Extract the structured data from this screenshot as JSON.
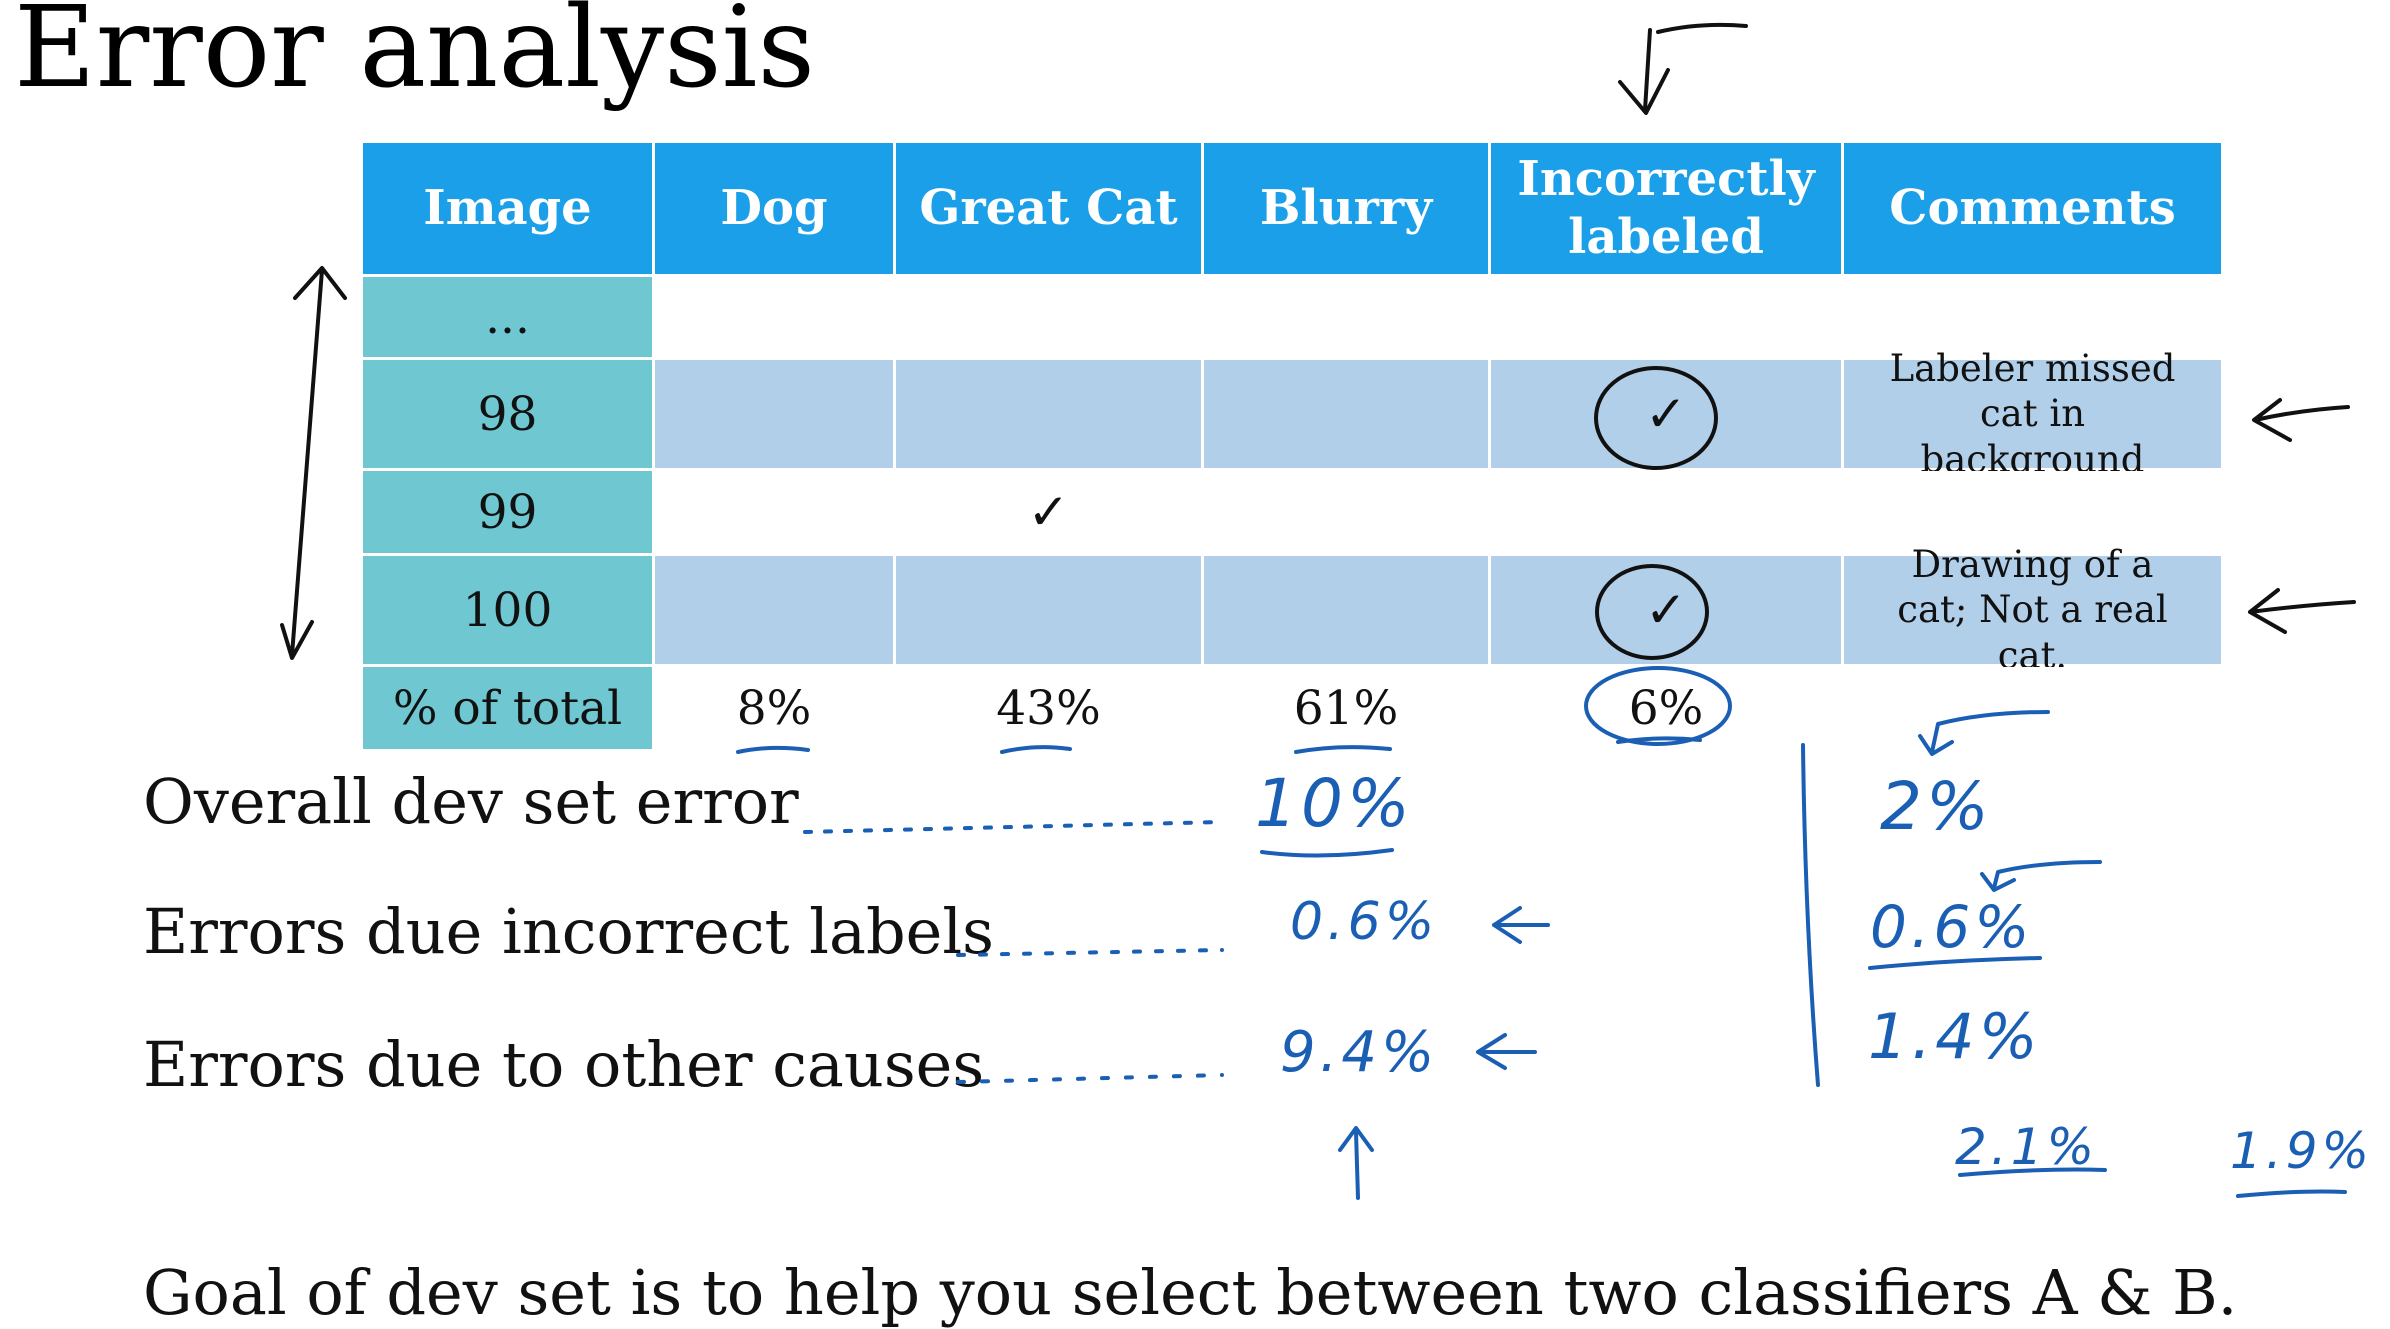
{
  "title": "Error analysis",
  "table": {
    "headers": [
      "Image",
      "Dog",
      "Great Cat",
      "Blurry",
      "Incorrectly labeled",
      "Comments"
    ],
    "rows": [
      {
        "image": "...",
        "dog": "",
        "great_cat": "",
        "blurry": "",
        "incorrectly_labeled": "",
        "comments": ""
      },
      {
        "image": "98",
        "dog": "",
        "great_cat": "",
        "blurry": "",
        "incorrectly_labeled": "✓",
        "comments": "Labeler missed cat in background"
      },
      {
        "image": "99",
        "dog": "",
        "great_cat": "✓",
        "blurry": "",
        "incorrectly_labeled": "",
        "comments": ""
      },
      {
        "image": "100",
        "dog": "",
        "great_cat": "",
        "blurry": "",
        "incorrectly_labeled": "✓",
        "comments": "Drawing of a cat; Not a real cat."
      }
    ],
    "totals": {
      "label": "% of total",
      "dog": "8%",
      "great_cat": "43%",
      "blurry": "61%",
      "incorrectly_labeled": "6%"
    }
  },
  "lines": {
    "overall": "Overall dev set error",
    "incorrect": "Errors due incorrect labels",
    "other": "Errors due to other causes",
    "goal": "Goal of dev set is to help you select between two classifiers A & B."
  },
  "handwritten": {
    "overall_value": "10%",
    "incorrect_value": "0.6%",
    "other_value": "9.4%",
    "alt_overall": "2%",
    "alt_incorrect": "0.6%",
    "alt_other": "1.4%",
    "classifier_a": "2.1%",
    "classifier_b": "1.9%"
  },
  "colors": {
    "header_bg": "#1a9fe8",
    "row_label_bg": "#6fc8d1",
    "shaded_row_bg": "#b2cfea",
    "ink_blue": "#1a5fb4"
  }
}
